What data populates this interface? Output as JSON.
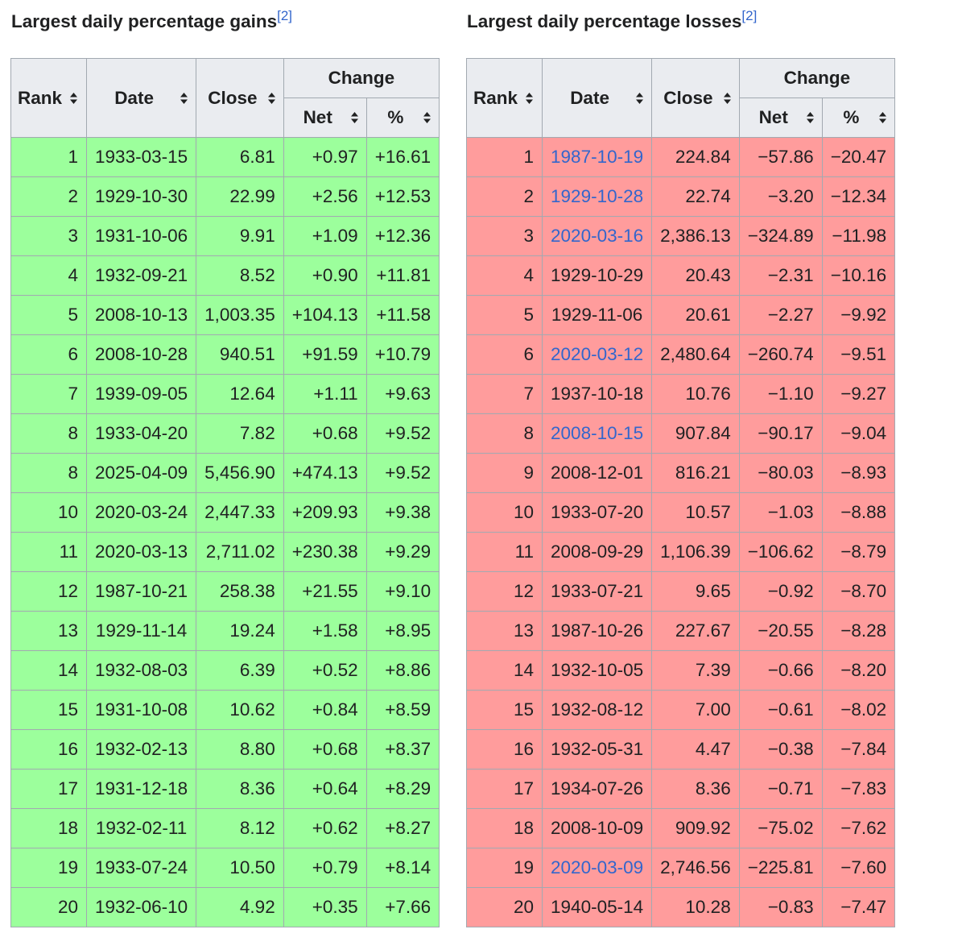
{
  "gains": {
    "caption": "Largest daily percentage gains",
    "ref": "[2]",
    "headers": {
      "rank": "Rank",
      "date": "Date",
      "close": "Close",
      "change": "Change",
      "net": "Net",
      "pct": "%"
    },
    "rows": [
      {
        "rank": "1",
        "date": "1933-03-15",
        "close": "6.81",
        "net": "+0.97",
        "pct": "+16.61",
        "link": false
      },
      {
        "rank": "2",
        "date": "1929-10-30",
        "close": "22.99",
        "net": "+2.56",
        "pct": "+12.53",
        "link": false
      },
      {
        "rank": "3",
        "date": "1931-10-06",
        "close": "9.91",
        "net": "+1.09",
        "pct": "+12.36",
        "link": false
      },
      {
        "rank": "4",
        "date": "1932-09-21",
        "close": "8.52",
        "net": "+0.90",
        "pct": "+11.81",
        "link": false
      },
      {
        "rank": "5",
        "date": "2008-10-13",
        "close": "1,003.35",
        "net": "+104.13",
        "pct": "+11.58",
        "link": false
      },
      {
        "rank": "6",
        "date": "2008-10-28",
        "close": "940.51",
        "net": "+91.59",
        "pct": "+10.79",
        "link": false
      },
      {
        "rank": "7",
        "date": "1939-09-05",
        "close": "12.64",
        "net": "+1.11",
        "pct": "+9.63",
        "link": false
      },
      {
        "rank": "8",
        "date": "1933-04-20",
        "close": "7.82",
        "net": "+0.68",
        "pct": "+9.52",
        "link": false
      },
      {
        "rank": "8",
        "date": "2025-04-09",
        "close": "5,456.90",
        "net": "+474.13",
        "pct": "+9.52",
        "link": false
      },
      {
        "rank": "10",
        "date": "2020-03-24",
        "close": "2,447.33",
        "net": "+209.93",
        "pct": "+9.38",
        "link": false
      },
      {
        "rank": "11",
        "date": "2020-03-13",
        "close": "2,711.02",
        "net": "+230.38",
        "pct": "+9.29",
        "link": false
      },
      {
        "rank": "12",
        "date": "1987-10-21",
        "close": "258.38",
        "net": "+21.55",
        "pct": "+9.10",
        "link": false
      },
      {
        "rank": "13",
        "date": "1929-11-14",
        "close": "19.24",
        "net": "+1.58",
        "pct": "+8.95",
        "link": false
      },
      {
        "rank": "14",
        "date": "1932-08-03",
        "close": "6.39",
        "net": "+0.52",
        "pct": "+8.86",
        "link": false
      },
      {
        "rank": "15",
        "date": "1931-10-08",
        "close": "10.62",
        "net": "+0.84",
        "pct": "+8.59",
        "link": false
      },
      {
        "rank": "16",
        "date": "1932-02-13",
        "close": "8.80",
        "net": "+0.68",
        "pct": "+8.37",
        "link": false
      },
      {
        "rank": "17",
        "date": "1931-12-18",
        "close": "8.36",
        "net": "+0.64",
        "pct": "+8.29",
        "link": false
      },
      {
        "rank": "18",
        "date": "1932-02-11",
        "close": "8.12",
        "net": "+0.62",
        "pct": "+8.27",
        "link": false
      },
      {
        "rank": "19",
        "date": "1933-07-24",
        "close": "10.50",
        "net": "+0.79",
        "pct": "+8.14",
        "link": false
      },
      {
        "rank": "20",
        "date": "1932-06-10",
        "close": "4.92",
        "net": "+0.35",
        "pct": "+7.66",
        "link": false
      }
    ]
  },
  "losses": {
    "caption": "Largest daily percentage losses",
    "ref": "[2]",
    "headers": {
      "rank": "Rank",
      "date": "Date",
      "close": "Close",
      "change": "Change",
      "net": "Net",
      "pct": "%"
    },
    "rows": [
      {
        "rank": "1",
        "date": "1987-10-19",
        "close": "224.84",
        "net": "−57.86",
        "pct": "−20.47",
        "link": true
      },
      {
        "rank": "2",
        "date": "1929-10-28",
        "close": "22.74",
        "net": "−3.20",
        "pct": "−12.34",
        "link": true
      },
      {
        "rank": "3",
        "date": "2020-03-16",
        "close": "2,386.13",
        "net": "−324.89",
        "pct": "−11.98",
        "link": true
      },
      {
        "rank": "4",
        "date": "1929-10-29",
        "close": "20.43",
        "net": "−2.31",
        "pct": "−10.16",
        "link": false
      },
      {
        "rank": "5",
        "date": "1929-11-06",
        "close": "20.61",
        "net": "−2.27",
        "pct": "−9.92",
        "link": false
      },
      {
        "rank": "6",
        "date": "2020-03-12",
        "close": "2,480.64",
        "net": "−260.74",
        "pct": "−9.51",
        "link": true
      },
      {
        "rank": "7",
        "date": "1937-10-18",
        "close": "10.76",
        "net": "−1.10",
        "pct": "−9.27",
        "link": false
      },
      {
        "rank": "8",
        "date": "2008-10-15",
        "close": "907.84",
        "net": "−90.17",
        "pct": "−9.04",
        "link": true
      },
      {
        "rank": "9",
        "date": "2008-12-01",
        "close": "816.21",
        "net": "−80.03",
        "pct": "−8.93",
        "link": false
      },
      {
        "rank": "10",
        "date": "1933-07-20",
        "close": "10.57",
        "net": "−1.03",
        "pct": "−8.88",
        "link": false
      },
      {
        "rank": "11",
        "date": "2008-09-29",
        "close": "1,106.39",
        "net": "−106.62",
        "pct": "−8.79",
        "link": false
      },
      {
        "rank": "12",
        "date": "1933-07-21",
        "close": "9.65",
        "net": "−0.92",
        "pct": "−8.70",
        "link": false
      },
      {
        "rank": "13",
        "date": "1987-10-26",
        "close": "227.67",
        "net": "−20.55",
        "pct": "−8.28",
        "link": false
      },
      {
        "rank": "14",
        "date": "1932-10-05",
        "close": "7.39",
        "net": "−0.66",
        "pct": "−8.20",
        "link": false
      },
      {
        "rank": "15",
        "date": "1932-08-12",
        "close": "7.00",
        "net": "−0.61",
        "pct": "−8.02",
        "link": false
      },
      {
        "rank": "16",
        "date": "1932-05-31",
        "close": "4.47",
        "net": "−0.38",
        "pct": "−7.84",
        "link": false
      },
      {
        "rank": "17",
        "date": "1934-07-26",
        "close": "8.36",
        "net": "−0.71",
        "pct": "−7.83",
        "link": false
      },
      {
        "rank": "18",
        "date": "2008-10-09",
        "close": "909.92",
        "net": "−75.02",
        "pct": "−7.62",
        "link": false
      },
      {
        "rank": "19",
        "date": "2020-03-09",
        "close": "2,746.56",
        "net": "−225.81",
        "pct": "−7.60",
        "link": true
      },
      {
        "rank": "20",
        "date": "1940-05-14",
        "close": "10.28",
        "net": "−0.83",
        "pct": "−7.47",
        "link": false
      }
    ]
  },
  "colors": {
    "gain_cell": "#9cff9c",
    "loss_cell": "#ff9c9c",
    "header_bg": "#eaecf0",
    "border": "#a2a9b1",
    "link": "#3366cc"
  },
  "icons": {
    "sort": "sort-icon"
  }
}
